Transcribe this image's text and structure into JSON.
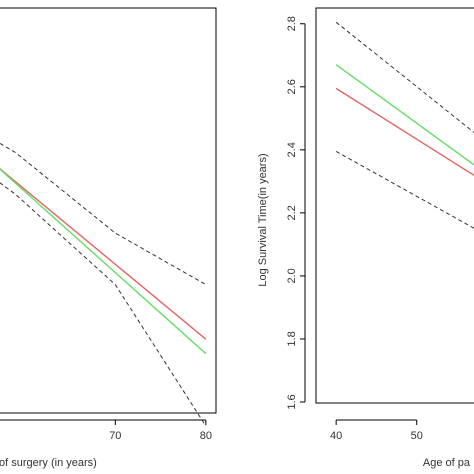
{
  "chart_data": [
    {
      "type": "line",
      "title": "",
      "xlabel": "of surgery (in years)",
      "ylabel": "",
      "xlim": [
        56.6,
        80.9
      ],
      "ylim": [
        1.6,
        2.85
      ],
      "xticks": [
        70,
        80
      ],
      "yticks": [],
      "grid": false,
      "legend": "none",
      "series": [
        {
          "style": "solid",
          "color": "#e06666",
          "x": [
            56.6,
            80
          ],
          "y": [
            2.365,
            1.82
          ]
        },
        {
          "style": "solid",
          "color": "#66dd66",
          "x": [
            56.6,
            80
          ],
          "y": [
            2.365,
            1.775
          ]
        },
        {
          "style": "dashed",
          "color": "#333333",
          "x": [
            56.6,
            59.0,
            70,
            80
          ],
          "y": [
            2.44,
            2.4,
            2.15,
            1.99
          ]
        },
        {
          "style": "dashed",
          "color": "#333333",
          "x": [
            56.6,
            59.0,
            70,
            80
          ],
          "y": [
            2.32,
            2.27,
            1.99,
            1.55
          ]
        }
      ]
    },
    {
      "type": "line",
      "title": "",
      "xlabel": "Age of pa",
      "ylabel": "Log Survival Time(in years)",
      "xlim": [
        37.5,
        58.6
      ],
      "ylim": [
        1.6,
        2.85
      ],
      "xticks": [
        40,
        50
      ],
      "yticks": [
        "1.6",
        "1.8",
        "2.0",
        "2.2",
        "2.4",
        "2.6",
        "2.8"
      ],
      "grid": false,
      "legend": "none",
      "series": [
        {
          "style": "solid",
          "color": "#66dd66",
          "x": [
            40,
            58.6
          ],
          "y": [
            2.67,
            2.325
          ]
        },
        {
          "style": "solid",
          "color": "#e06666",
          "x": [
            40,
            58.6
          ],
          "y": [
            2.595,
            2.295
          ]
        },
        {
          "style": "dashed",
          "color": "#333333",
          "x": [
            40,
            58.6
          ],
          "y": [
            2.805,
            2.425
          ]
        },
        {
          "style": "dashed",
          "color": "#333333",
          "x": [
            40,
            58.6
          ],
          "y": [
            2.395,
            2.13
          ]
        }
      ]
    }
  ]
}
